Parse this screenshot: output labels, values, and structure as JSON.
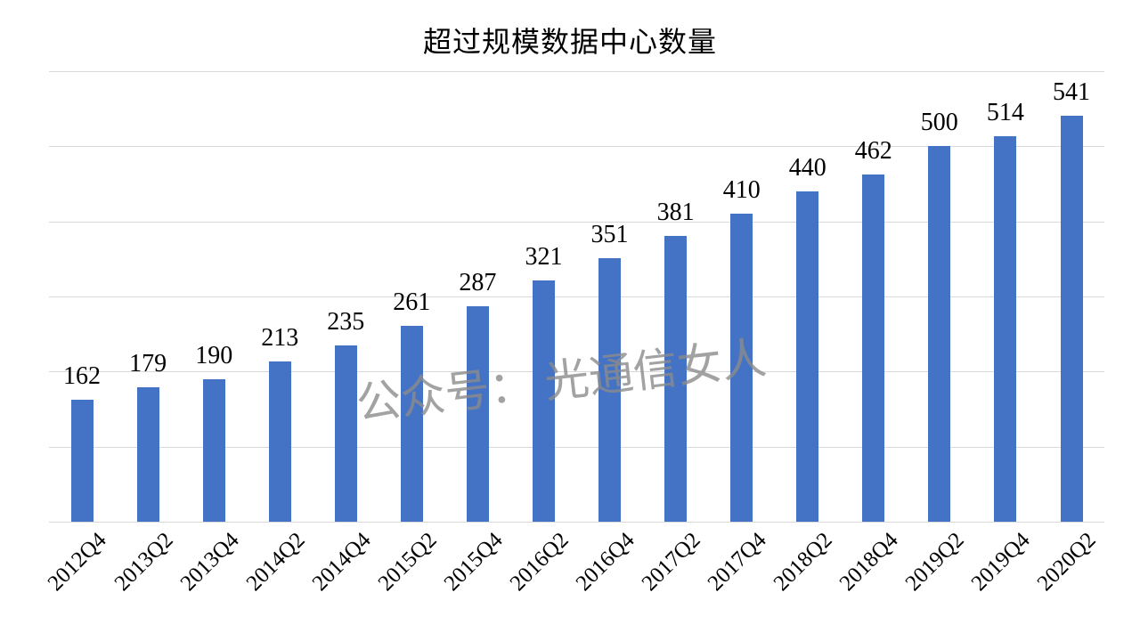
{
  "title": "超过规模数据中心数量",
  "watermark": "公众号： 光通信女人",
  "chart_data": {
    "type": "bar",
    "title": "超过规模数据中心数量",
    "categories": [
      "2012Q4",
      "2013Q2",
      "2013Q4",
      "2014Q2",
      "2014Q4",
      "2015Q2",
      "2015Q4",
      "2016Q2",
      "2016Q4",
      "2017Q2",
      "2017Q4",
      "2018Q2",
      "2018Q4",
      "2019Q2",
      "2019Q4",
      "2020Q2"
    ],
    "values": [
      162,
      179,
      190,
      213,
      235,
      261,
      287,
      321,
      351,
      381,
      410,
      440,
      462,
      500,
      514,
      541
    ],
    "xlabel": "",
    "ylabel": "",
    "ylim": [
      0,
      600
    ],
    "grid": true,
    "gridline_interval": 100,
    "legend_position": "none",
    "y_axis_labels_visible": false,
    "data_labels_visible": true,
    "colors": {
      "bar": "#4472C4",
      "gridline": "#D9D9D9",
      "axis_line": "#D9D9D9",
      "value_label": "#000000",
      "tick_label": "#000000",
      "title": "#000000",
      "watermark": "#8C8C8C",
      "background": "#FFFFFF"
    }
  }
}
